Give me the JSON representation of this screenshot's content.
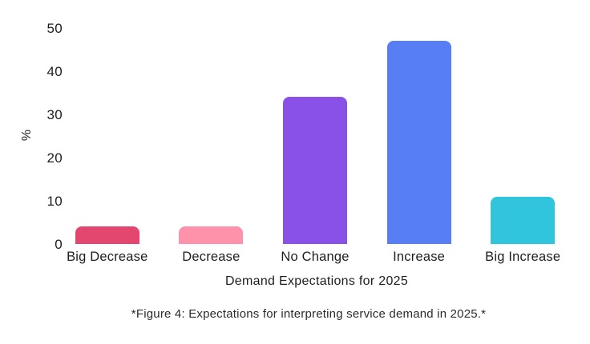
{
  "chart_data": {
    "type": "bar",
    "title": "",
    "categories": [
      "Big Decrease",
      "Decrease",
      "No Change",
      "Increase",
      "Big Increase"
    ],
    "values": [
      4,
      4,
      34,
      47,
      11
    ],
    "bar_colors": [
      "#e3476f",
      "#fd92aa",
      "#8a51e9",
      "#587ef6",
      "#30c5dc"
    ],
    "xlabel": "Demand Expectations for 2025",
    "ylabel": "%",
    "yticks": [
      0,
      10,
      20,
      30,
      40,
      50
    ],
    "ylim": [
      0,
      50
    ],
    "grid": "off",
    "legend": "none",
    "caption": "*Figure 4: Expectations for interpreting service demand in 2025.*"
  }
}
